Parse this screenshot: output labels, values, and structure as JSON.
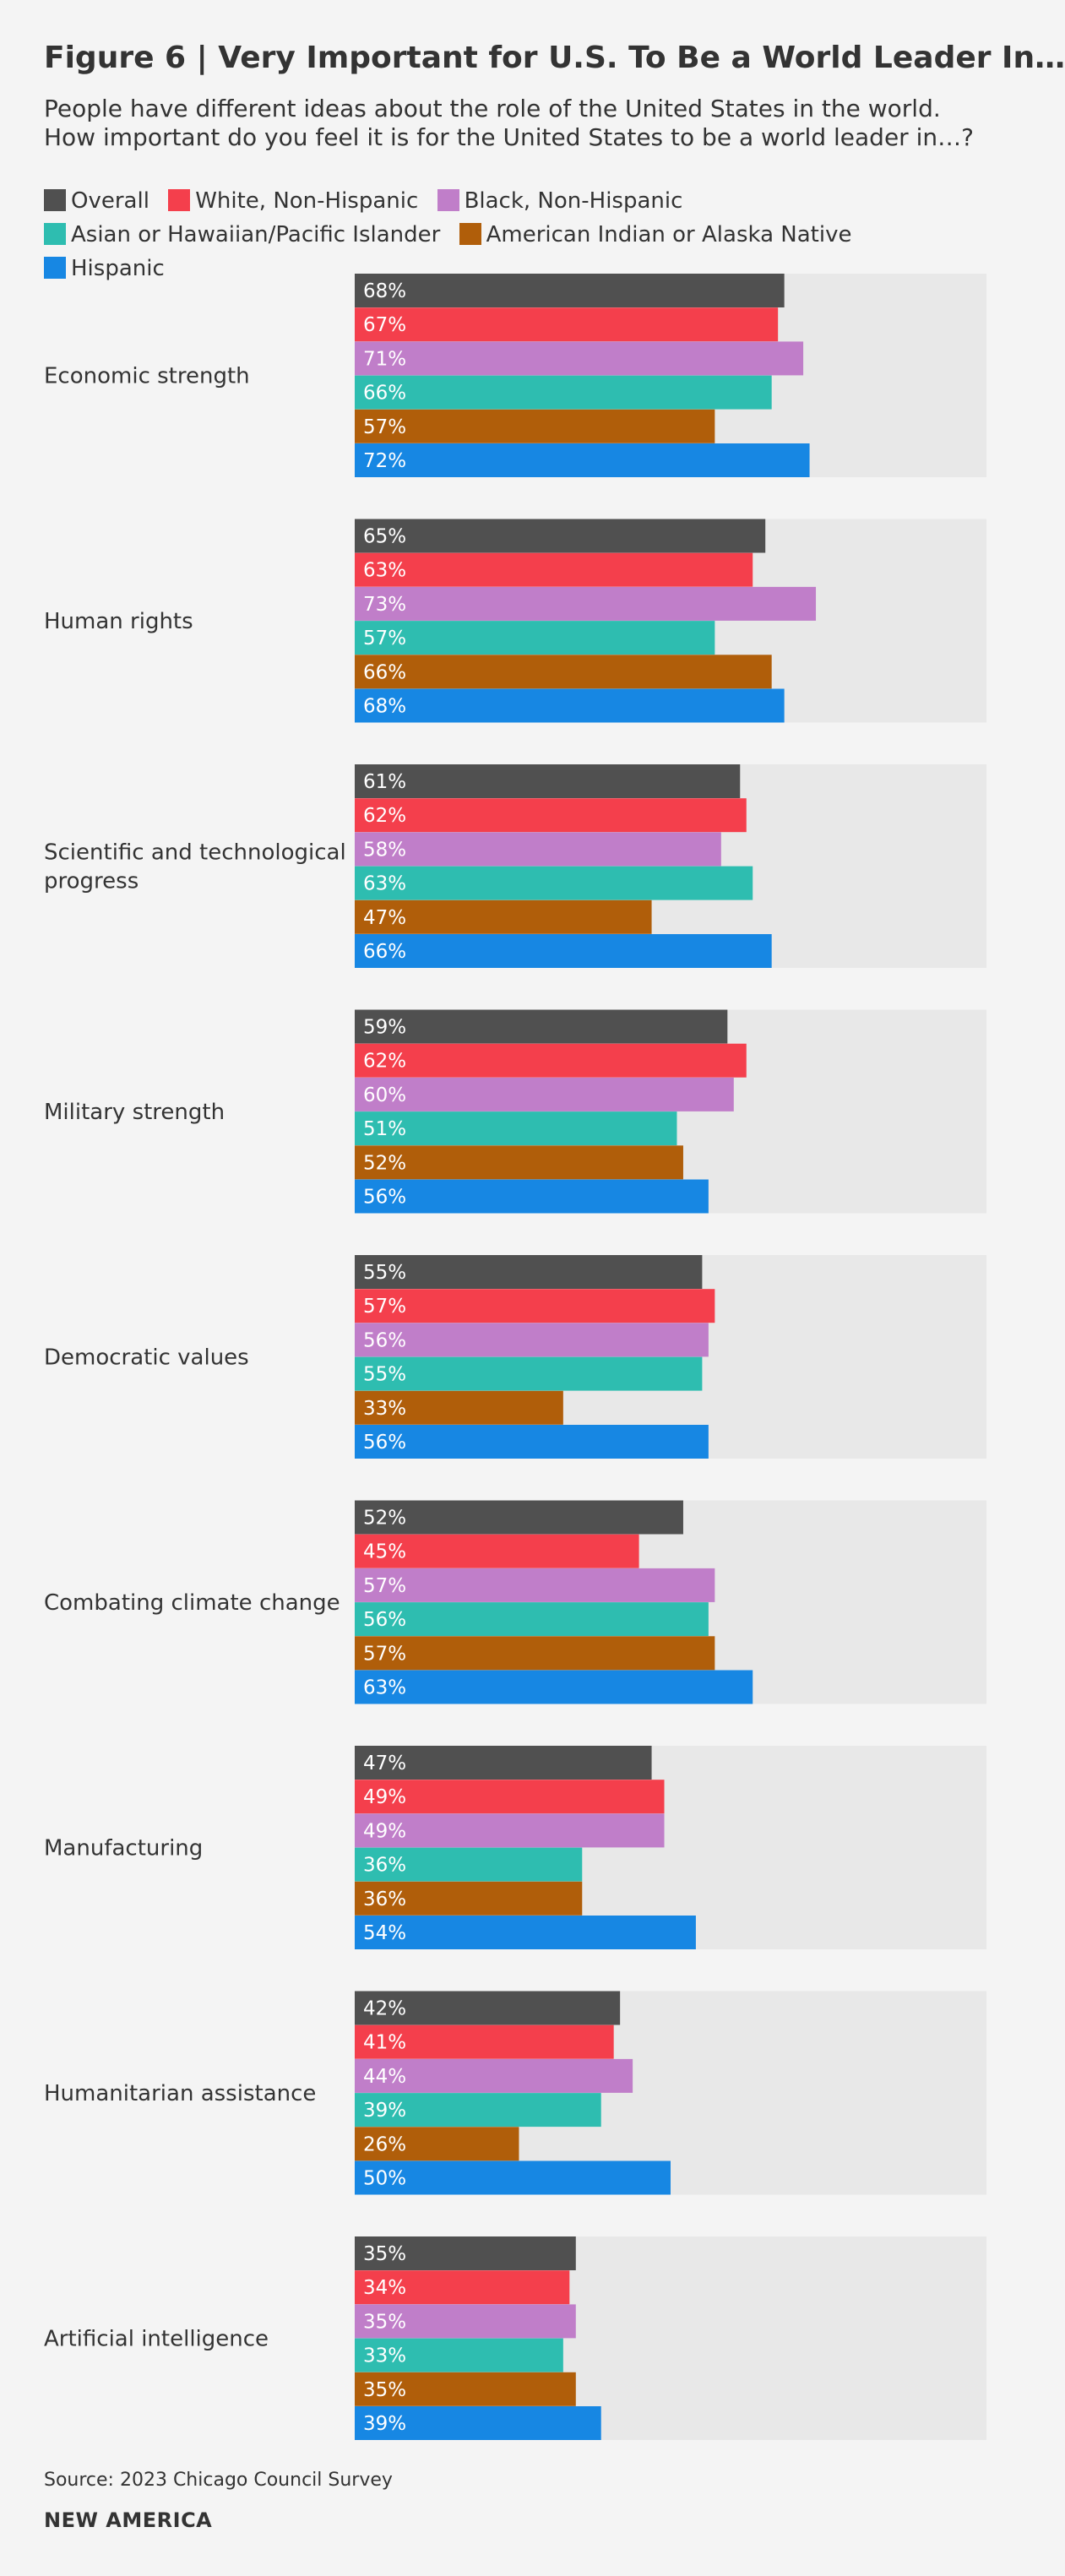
{
  "header": {
    "title": "Figure 6 | Very Important for U.S. To Be a World Leader In…",
    "subtitle": "People have different ideas about the role of the United States in the world. How important do you feel it is for the United States to be a world leader in…?"
  },
  "footer": {
    "source": "Source: 2023 Chicago Council Survey",
    "brand": "NEW AMERICA"
  },
  "colors": {
    "track": "#e8e8e8",
    "label_text": "#ffffff"
  },
  "chart_data": {
    "type": "bar",
    "orientation": "horizontal",
    "title": "Figure 6 | Very Important for U.S. To Be a World Leader In…",
    "xlim": [
      0,
      100
    ],
    "value_suffix": "%",
    "categories": [
      [
        "Economic strength"
      ],
      [
        "Human rights"
      ],
      [
        "Scientific and technological",
        "progress"
      ],
      [
        "Military strength"
      ],
      [
        "Democratic values"
      ],
      [
        "Combating climate change"
      ],
      [
        "Manufacturing"
      ],
      [
        "Humanitarian assistance"
      ],
      [
        "Artificial intelligence"
      ]
    ],
    "series": [
      {
        "name": "Overall",
        "color": "#505050",
        "values": [
          68,
          65,
          61,
          59,
          55,
          52,
          47,
          42,
          35
        ]
      },
      {
        "name": "White, Non-Hispanic",
        "color": "#f43f4c",
        "values": [
          67,
          63,
          62,
          62,
          57,
          45,
          49,
          41,
          34
        ]
      },
      {
        "name": "Black, Non-Hispanic",
        "color": "#c07ec9",
        "values": [
          71,
          73,
          58,
          60,
          56,
          57,
          49,
          44,
          35
        ]
      },
      {
        "name": "Asian or Hawaiian/Pacific Islander",
        "color": "#2ebdb0",
        "values": [
          66,
          57,
          63,
          51,
          55,
          56,
          36,
          39,
          33
        ]
      },
      {
        "name": "American Indian or Alaska Native",
        "color": "#b05e0a",
        "values": [
          57,
          66,
          47,
          52,
          33,
          57,
          36,
          26,
          35
        ]
      },
      {
        "name": "Hispanic",
        "color": "#1787e3",
        "values": [
          72,
          68,
          66,
          56,
          56,
          63,
          54,
          50,
          39
        ]
      }
    ]
  }
}
